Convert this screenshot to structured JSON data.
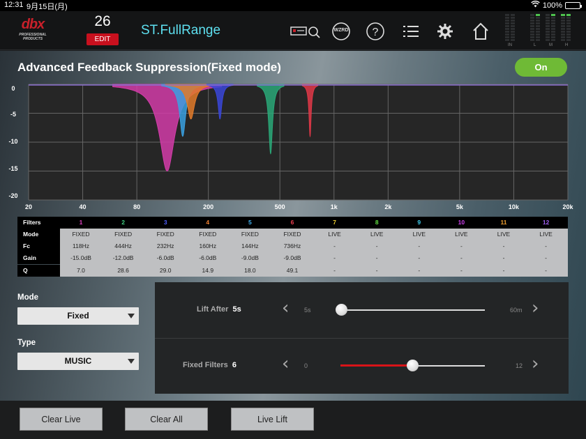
{
  "status": {
    "time": "12:31",
    "date": "9月15日(月)",
    "battery": "100%"
  },
  "header": {
    "logo_brand": "dbx",
    "logo_sub": "PROFESSIONAL PRODUCTS",
    "preset_number": "26",
    "edit_label": "EDIT",
    "preset_name": "ST.FullRange",
    "wizard_label": "WZRD",
    "meter_labels": [
      "IN",
      "L",
      "M",
      "H"
    ]
  },
  "panel": {
    "title": "Advanced Feedback Suppression(Fixed mode)",
    "toggle_label": "On"
  },
  "graph": {
    "y_labels": [
      "0",
      "-5",
      "-10",
      "-15",
      "-20"
    ],
    "x_labels": [
      "20",
      "40",
      "80",
      "200",
      "500",
      "1k",
      "2k",
      "5k",
      "10k",
      "20k"
    ],
    "filters_drawn": [
      {
        "freq": 118,
        "gain": -15.0,
        "q": 7.0,
        "color": "#d23ca8"
      },
      {
        "freq": 144,
        "gain": -9.0,
        "q": 18.0,
        "color": "#3aa0e0"
      },
      {
        "freq": 160,
        "gain": -6.0,
        "q": 14.9,
        "color": "#e07a2a"
      },
      {
        "freq": 232,
        "gain": -6.0,
        "q": 29.0,
        "color": "#3a46d8"
      },
      {
        "freq": 444,
        "gain": -12.0,
        "q": 28.6,
        "color": "#2aa878"
      },
      {
        "freq": 736,
        "gain": -9.0,
        "q": 49.1,
        "color": "#e03848"
      }
    ]
  },
  "table": {
    "row_labels": [
      "Filters",
      "Mode",
      "Fc",
      "Gain",
      "Q"
    ],
    "columns": [
      {
        "num": "1",
        "color": "#e040c0",
        "mode": "FIXED",
        "fc": "118Hz",
        "gain": "-15.0dB",
        "q": "7.0"
      },
      {
        "num": "2",
        "color": "#40d080",
        "mode": "FIXED",
        "fc": "444Hz",
        "gain": "-12.0dB",
        "q": "28.6"
      },
      {
        "num": "3",
        "color": "#5060ff",
        "mode": "FIXED",
        "fc": "232Hz",
        "gain": "-6.0dB",
        "q": "29.0"
      },
      {
        "num": "4",
        "color": "#f08030",
        "mode": "FIXED",
        "fc": "160Hz",
        "gain": "-6.0dB",
        "q": "14.9"
      },
      {
        "num": "5",
        "color": "#40b0f0",
        "mode": "FIXED",
        "fc": "144Hz",
        "gain": "-9.0dB",
        "q": "18.0"
      },
      {
        "num": "6",
        "color": "#f04050",
        "mode": "FIXED",
        "fc": "736Hz",
        "gain": "-9.0dB",
        "q": "49.1"
      },
      {
        "num": "7",
        "color": "#f0d030",
        "mode": "LIVE",
        "fc": "-",
        "gain": "-",
        "q": "-"
      },
      {
        "num": "8",
        "color": "#60e040",
        "mode": "LIVE",
        "fc": "-",
        "gain": "-",
        "q": "-"
      },
      {
        "num": "9",
        "color": "#40d0f0",
        "mode": "LIVE",
        "fc": "-",
        "gain": "-",
        "q": "-"
      },
      {
        "num": "10",
        "color": "#d040f0",
        "mode": "LIVE",
        "fc": "-",
        "gain": "-",
        "q": "-"
      },
      {
        "num": "11",
        "color": "#f0a030",
        "mode": "LIVE",
        "fc": "-",
        "gain": "-",
        "q": "-"
      },
      {
        "num": "12",
        "color": "#a060f0",
        "mode": "LIVE",
        "fc": "-",
        "gain": "-",
        "q": "-"
      }
    ]
  },
  "controls": {
    "mode_label": "Mode",
    "mode_value": "Fixed",
    "type_label": "Type",
    "type_value": "MUSIC",
    "lift_after": {
      "label": "Lift After",
      "value": "5s",
      "min": "5s",
      "max": "60m",
      "fraction": 0.0
    },
    "fixed_filters": {
      "label": "Fixed Filters",
      "value": "6",
      "min": "0",
      "max": "12",
      "fraction": 0.5
    }
  },
  "buttons": {
    "clear_live": "Clear Live",
    "clear_all": "Clear All",
    "live_lift": "Live Lift"
  }
}
